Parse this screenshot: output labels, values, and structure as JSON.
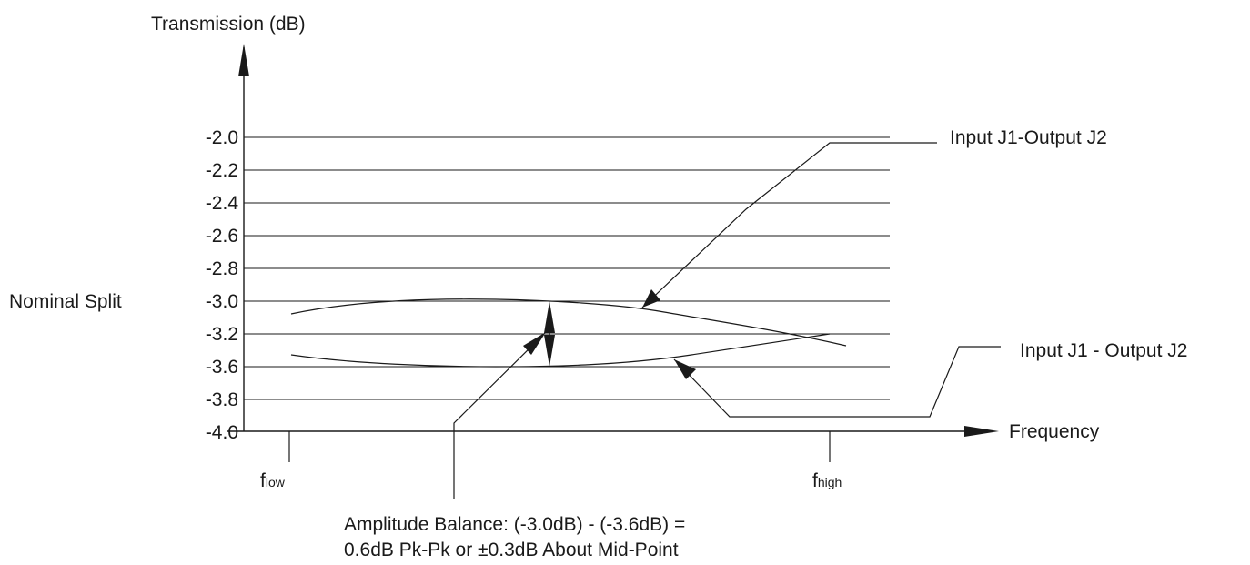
{
  "y_axis": {
    "label": "Transmission (dB)"
  },
  "x_axis": {
    "label": "Frequency",
    "low_main": "f",
    "low_sub": "low",
    "high_main": "f",
    "high_sub": "high"
  },
  "y_ticks": [
    "-2.0",
    "-2.2",
    "-2.4",
    "-2.6",
    "-2.8",
    "-3.0",
    "-3.2",
    "-3.6",
    "-3.8",
    "-4.0"
  ],
  "nominal_label": "Nominal Split",
  "callouts": {
    "upper": "Input J1-Output J2",
    "lower": "Input J1 - Output J2",
    "balance_line1": "Amplitude Balance: (-3.0dB) - (-3.6dB) =",
    "balance_line2": "0.6dB Pk-Pk or ±0.3dB About Mid-Point"
  },
  "colors": {
    "line": "#1a1a1a",
    "background": "#ffffff"
  }
}
